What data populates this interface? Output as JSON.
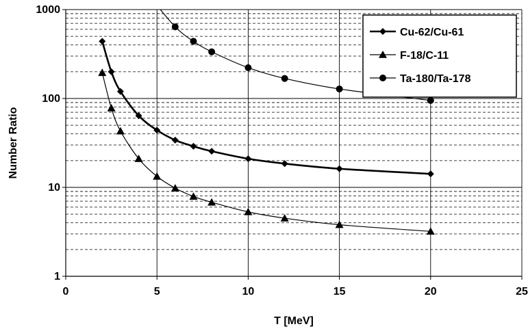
{
  "chart_data": {
    "type": "line",
    "xlabel": "T [MeV]",
    "ylabel": "Number Ratio",
    "xlim": [
      0,
      25
    ],
    "ylim": [
      1,
      1000
    ],
    "y_scale": "log",
    "x_ticks": [
      "0",
      "5",
      "10",
      "15",
      "20",
      "25"
    ],
    "y_ticks": [
      "1",
      "10",
      "100",
      "1000"
    ],
    "grid": {
      "major": true,
      "minor_dashed": true
    },
    "legend_position": "top-right",
    "series": [
      {
        "name": "Cu-62/Cu-61",
        "marker": "diamond",
        "line": "thick",
        "x": [
          2,
          2.5,
          3,
          4,
          5,
          6,
          7,
          8,
          10,
          12,
          15,
          20
        ],
        "y": [
          440,
          200,
          120,
          64,
          44,
          34,
          29,
          25.5,
          21,
          18.5,
          16.2,
          14.2
        ]
      },
      {
        "name": "F-18/C-11",
        "marker": "triangle",
        "line": "thin",
        "x": [
          2,
          2.5,
          3,
          4,
          5,
          6,
          7,
          8,
          10,
          12,
          15,
          20
        ],
        "y": [
          195,
          78,
          43,
          21,
          13.3,
          9.8,
          7.9,
          6.8,
          5.3,
          4.5,
          3.8,
          3.2
        ]
      },
      {
        "name": "Ta-180/Ta-178",
        "marker": "circle",
        "line": "thin",
        "x": [
          6,
          7,
          8,
          10,
          12,
          15,
          20
        ],
        "y": [
          640,
          440,
          335,
          222,
          168,
          128,
          95
        ]
      }
    ]
  }
}
